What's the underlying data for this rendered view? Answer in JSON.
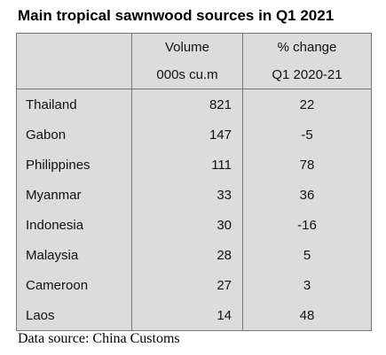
{
  "title": "Main tropical sawnwood sources in Q1 2021",
  "table": {
    "header": [
      [
        "",
        "Volume",
        "% change"
      ],
      [
        "",
        "000s cu.m",
        "Q1 2020-21"
      ]
    ],
    "rows": [
      [
        "Thailand",
        821,
        22
      ],
      [
        "Gabon",
        147,
        -5
      ],
      [
        "Philippines",
        111,
        78
      ],
      [
        "Myanmar",
        33,
        36
      ],
      [
        "Indonesia",
        30,
        -16
      ],
      [
        "Malaysia",
        28,
        5
      ],
      [
        "Cameroon",
        27,
        3
      ],
      [
        "Laos",
        14,
        48
      ]
    ]
  },
  "source": "Data source: China Customs"
}
